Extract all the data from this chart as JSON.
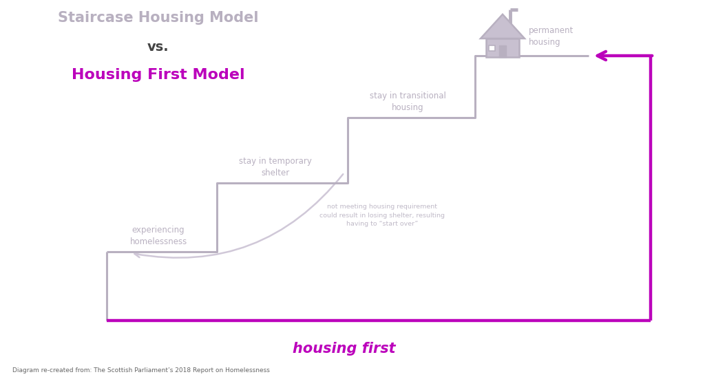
{
  "title_line1": "Staircase Housing Model",
  "title_line2": "vs.",
  "title_line3": "Housing First Model",
  "title_color1": "#b8b0c0",
  "title_color2": "#444444",
  "title_color3": "#bb00bb",
  "staircase_color": "#b8b0c0",
  "housing_first_color": "#bb00bb",
  "step_labels": [
    "experiencing\nhomelessness",
    "stay in temporary\nshelter",
    "stay in transitional\nhousing",
    "permanent\nhousing"
  ],
  "step_label_color": "#b8b0c0",
  "housing_first_label": "housing first",
  "note_text": "not meeting housing requirement\ncould result in losing shelter, resulting\nhaving to “start over”",
  "note_color": "#c0bac8",
  "source_text": "Diagram re-created from: The Scottish Parliament’s 2018 Report on Homelessness",
  "source_color": "#666666",
  "bg_color": "#ffffff",
  "arrow_color": "#d0c8d8"
}
